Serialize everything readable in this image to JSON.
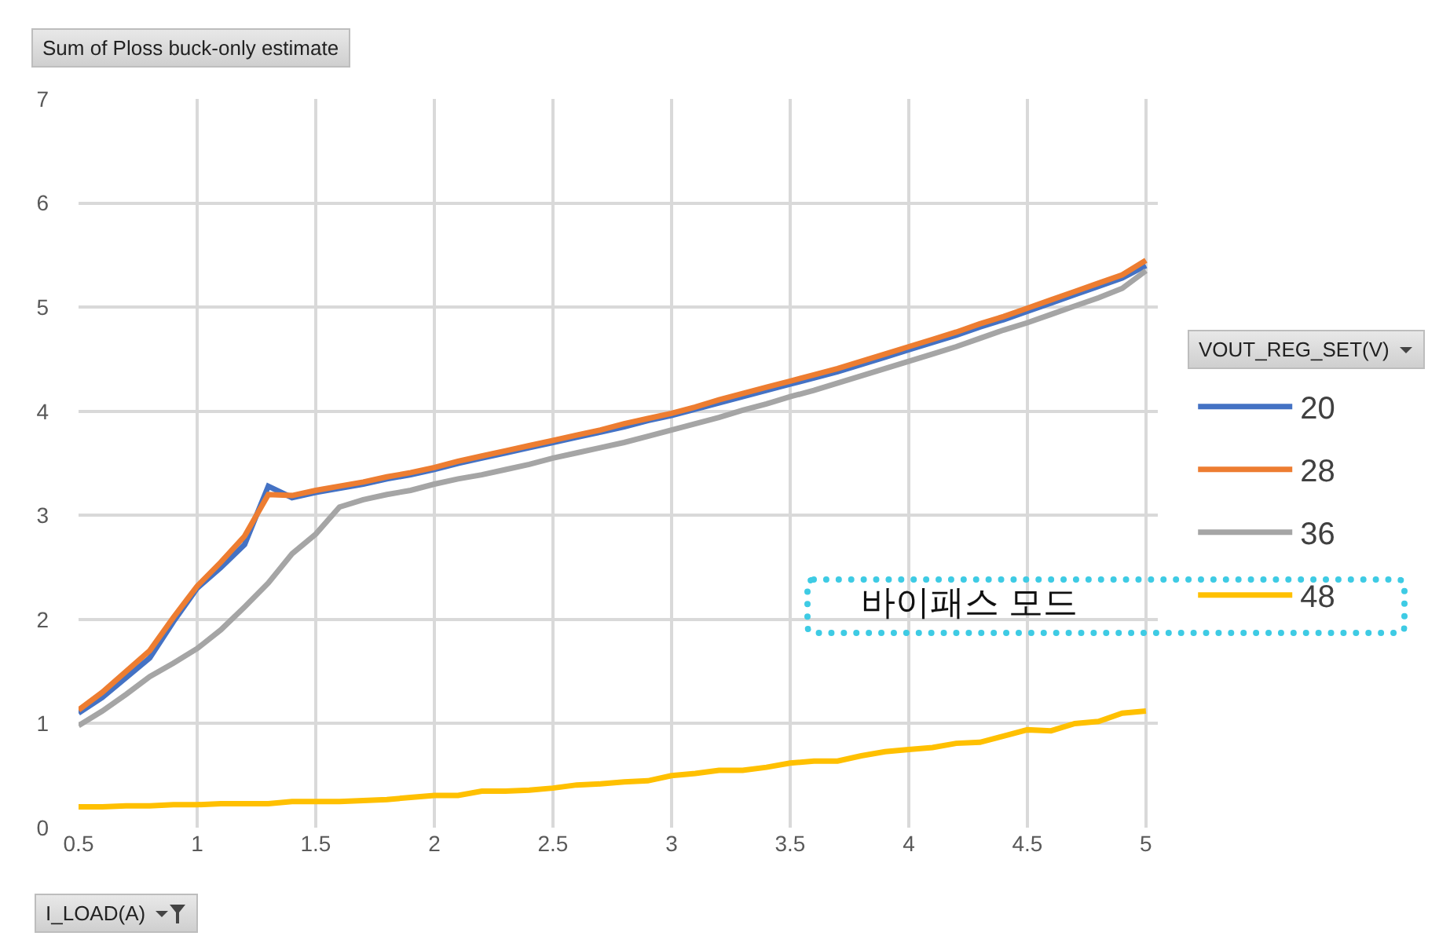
{
  "chart_data": {
    "type": "line",
    "title": "Sum of Ploss buck-only estimate",
    "xlabel": "I_LOAD(A)",
    "legend_title": "VOUT_REG_SET(V)",
    "annotations": [
      "바이패스 모드"
    ],
    "x": [
      0.5,
      0.6,
      0.7,
      0.8,
      0.9,
      1.0,
      1.1,
      1.2,
      1.3,
      1.4,
      1.5,
      1.6,
      1.7,
      1.8,
      1.9,
      2.0,
      2.1,
      2.2,
      2.3,
      2.4,
      2.5,
      2.6,
      2.7,
      2.8,
      2.9,
      3.0,
      3.1,
      3.2,
      3.3,
      3.4,
      3.5,
      3.6,
      3.7,
      3.8,
      3.9,
      4.0,
      4.1,
      4.2,
      4.3,
      4.4,
      4.5,
      4.6,
      4.7,
      4.8,
      4.9,
      5.0
    ],
    "series": [
      {
        "name": "20",
        "color": "#4472c4",
        "values": [
          1.1,
          1.25,
          1.44,
          1.63,
          1.98,
          2.3,
          2.5,
          2.72,
          3.28,
          3.17,
          3.22,
          3.26,
          3.3,
          3.35,
          3.39,
          3.44,
          3.5,
          3.55,
          3.6,
          3.65,
          3.7,
          3.75,
          3.8,
          3.85,
          3.91,
          3.96,
          4.02,
          4.08,
          4.14,
          4.2,
          4.26,
          4.32,
          4.38,
          4.45,
          4.52,
          4.59,
          4.66,
          4.73,
          4.81,
          4.88,
          4.96,
          5.04,
          5.12,
          5.2,
          5.28,
          5.4
        ]
      },
      {
        "name": "28",
        "color": "#ed7d31",
        "values": [
          1.13,
          1.3,
          1.5,
          1.7,
          2.02,
          2.32,
          2.55,
          2.8,
          3.2,
          3.19,
          3.24,
          3.28,
          3.32,
          3.37,
          3.41,
          3.46,
          3.52,
          3.57,
          3.62,
          3.67,
          3.72,
          3.77,
          3.82,
          3.88,
          3.93,
          3.98,
          4.04,
          4.11,
          4.17,
          4.23,
          4.29,
          4.35,
          4.41,
          4.48,
          4.55,
          4.62,
          4.69,
          4.76,
          4.84,
          4.91,
          4.99,
          5.07,
          5.15,
          5.23,
          5.31,
          5.45
        ]
      },
      {
        "name": "36",
        "color": "#a5a5a5",
        "values": [
          0.98,
          1.12,
          1.28,
          1.45,
          1.58,
          1.72,
          1.9,
          2.12,
          2.35,
          2.63,
          2.82,
          3.08,
          3.15,
          3.2,
          3.24,
          3.3,
          3.35,
          3.39,
          3.44,
          3.49,
          3.55,
          3.6,
          3.65,
          3.7,
          3.76,
          3.82,
          3.88,
          3.94,
          4.01,
          4.07,
          4.14,
          4.2,
          4.27,
          4.34,
          4.41,
          4.48,
          4.55,
          4.62,
          4.7,
          4.78,
          4.85,
          4.93,
          5.01,
          5.09,
          5.18,
          5.35
        ]
      },
      {
        "name": "48",
        "color": "#ffc000",
        "values": [
          0.2,
          0.2,
          0.21,
          0.21,
          0.22,
          0.22,
          0.23,
          0.23,
          0.23,
          0.25,
          0.25,
          0.25,
          0.26,
          0.27,
          0.29,
          0.31,
          0.31,
          0.35,
          0.35,
          0.36,
          0.38,
          0.41,
          0.42,
          0.44,
          0.45,
          0.5,
          0.52,
          0.55,
          0.55,
          0.58,
          0.62,
          0.64,
          0.64,
          0.69,
          0.73,
          0.75,
          0.77,
          0.81,
          0.82,
          0.88,
          0.94,
          0.93,
          1.0,
          1.02,
          1.1,
          1.12
        ]
      }
    ],
    "xlim": [
      0.5,
      5.05
    ],
    "xticks": [
      0.5,
      1,
      1.5,
      2,
      2.5,
      3,
      3.5,
      4,
      4.5,
      5
    ],
    "ylim": [
      0,
      7
    ],
    "yticks": [
      0,
      1,
      2,
      3,
      4,
      5,
      6,
      7
    ],
    "grid": true,
    "legend": "right"
  }
}
